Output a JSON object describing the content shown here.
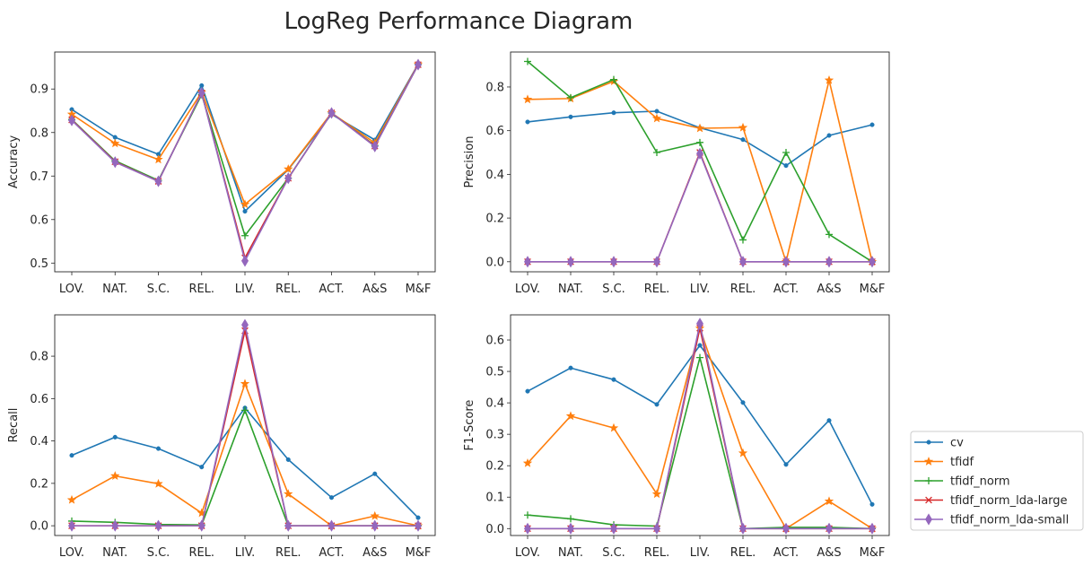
{
  "figure": {
    "title": "LogReg Performance Diagram"
  },
  "chart_data": [
    {
      "type": "line",
      "ylabel": "Accuracy",
      "categories": [
        "LOV.",
        "NAT.",
        "S.C.",
        "REL.",
        "LIV.",
        "REL.",
        "ACT.",
        "A&S",
        "M&F"
      ],
      "ylim": [
        0.48,
        0.985
      ],
      "yticks": [
        0.5,
        0.6,
        0.7,
        0.8,
        0.9
      ],
      "series": [
        {
          "name": "cv",
          "values": [
            0.853,
            0.789,
            0.75,
            0.908,
            0.619,
            0.715,
            0.842,
            0.783,
            0.957
          ]
        },
        {
          "name": "tfidf",
          "values": [
            0.842,
            0.775,
            0.738,
            0.893,
            0.635,
            0.716,
            0.845,
            0.776,
            0.957
          ]
        },
        {
          "name": "tfidf_norm",
          "values": [
            0.83,
            0.735,
            0.69,
            0.887,
            0.563,
            0.695,
            0.845,
            0.77,
            0.956
          ]
        },
        {
          "name": "tfidf_norm_lda-large",
          "values": [
            0.829,
            0.733,
            0.688,
            0.891,
            0.512,
            0.695,
            0.845,
            0.769,
            0.956
          ]
        },
        {
          "name": "tfidf_norm_lda-small",
          "values": [
            0.828,
            0.732,
            0.688,
            0.891,
            0.505,
            0.695,
            0.845,
            0.768,
            0.956
          ]
        }
      ]
    },
    {
      "type": "line",
      "ylabel": "Precision",
      "categories": [
        "LOV.",
        "NAT.",
        "S.C.",
        "REL.",
        "LIV.",
        "REL.",
        "ACT.",
        "A&S",
        "M&F"
      ],
      "ylim": [
        -0.046,
        0.96
      ],
      "yticks": [
        0.0,
        0.2,
        0.4,
        0.6,
        0.8
      ],
      "series": [
        {
          "name": "cv",
          "values": [
            0.64,
            0.663,
            0.682,
            0.689,
            0.613,
            0.559,
            0.44,
            0.578,
            0.627
          ]
        },
        {
          "name": "tfidf",
          "values": [
            0.743,
            0.747,
            0.826,
            0.656,
            0.611,
            0.614,
            0.0,
            0.831,
            0.0
          ]
        },
        {
          "name": "tfidf_norm",
          "values": [
            0.917,
            0.751,
            0.834,
            0.5,
            0.546,
            0.1,
            0.5,
            0.125,
            0.0
          ]
        },
        {
          "name": "tfidf_norm_lda-large",
          "values": [
            0.0,
            0.0,
            0.0,
            0.0,
            0.5,
            0.0,
            0.0,
            0.0,
            0.0
          ]
        },
        {
          "name": "tfidf_norm_lda-small",
          "values": [
            0.0,
            0.0,
            0.0,
            0.0,
            0.495,
            0.0,
            0.0,
            0.0,
            0.0
          ]
        }
      ]
    },
    {
      "type": "line",
      "ylabel": "Recall",
      "categories": [
        "LOV.",
        "NAT.",
        "S.C.",
        "REL.",
        "LIV.",
        "REL.",
        "ACT.",
        "A&S",
        "M&F"
      ],
      "ylim": [
        -0.046,
        0.995
      ],
      "yticks": [
        0.0,
        0.2,
        0.4,
        0.6,
        0.8
      ],
      "series": [
        {
          "name": "cv",
          "values": [
            0.332,
            0.418,
            0.364,
            0.277,
            0.556,
            0.312,
            0.133,
            0.245,
            0.038
          ]
        },
        {
          "name": "tfidf",
          "values": [
            0.122,
            0.235,
            0.198,
            0.06,
            0.67,
            0.15,
            0.0,
            0.046,
            0.0
          ]
        },
        {
          "name": "tfidf_norm",
          "values": [
            0.022,
            0.016,
            0.006,
            0.004,
            0.545,
            0.0,
            0.0,
            0.0,
            0.0
          ]
        },
        {
          "name": "tfidf_norm_lda-large",
          "values": [
            0.0,
            0.0,
            0.0,
            0.0,
            0.92,
            0.0,
            0.0,
            0.0,
            0.0
          ]
        },
        {
          "name": "tfidf_norm_lda-small",
          "values": [
            0.0,
            0.0,
            0.0,
            0.0,
            0.948,
            0.0,
            0.0,
            0.0,
            0.0
          ]
        }
      ]
    },
    {
      "type": "line",
      "ylabel": "F1-Score",
      "categories": [
        "LOV.",
        "NAT.",
        "S.C.",
        "REL.",
        "LIV.",
        "REL.",
        "ACT.",
        "A&S",
        "M&F"
      ],
      "ylim": [
        -0.022,
        0.68
      ],
      "yticks": [
        0.0,
        0.1,
        0.2,
        0.3,
        0.4,
        0.5,
        0.6
      ],
      "series": [
        {
          "name": "cv",
          "values": [
            0.437,
            0.511,
            0.474,
            0.395,
            0.583,
            0.401,
            0.204,
            0.344,
            0.077
          ]
        },
        {
          "name": "tfidf",
          "values": [
            0.208,
            0.358,
            0.32,
            0.11,
            0.637,
            0.24,
            0.0,
            0.087,
            0.0
          ]
        },
        {
          "name": "tfidf_norm",
          "values": [
            0.043,
            0.031,
            0.012,
            0.008,
            0.544,
            0.0,
            0.004,
            0.004,
            0.0
          ]
        },
        {
          "name": "tfidf_norm_lda-large",
          "values": [
            0.0,
            0.0,
            0.0,
            0.0,
            0.638,
            0.0,
            0.0,
            0.0,
            0.0
          ]
        },
        {
          "name": "tfidf_norm_lda-small",
          "values": [
            0.0,
            0.0,
            0.0,
            0.0,
            0.652,
            0.0,
            0.0,
            0.0,
            0.0
          ]
        }
      ]
    }
  ],
  "legend": {
    "placement": "lower-right outside",
    "entries": [
      {
        "name": "cv",
        "color": "#1f77b4",
        "marker": "point"
      },
      {
        "name": "tfidf",
        "color": "#ff7f0e",
        "marker": "star"
      },
      {
        "name": "tfidf_norm",
        "color": "#2ca02c",
        "marker": "plus"
      },
      {
        "name": "tfidf_norm_lda-large",
        "color": "#d62728",
        "marker": "x"
      },
      {
        "name": "tfidf_norm_lda-small",
        "color": "#9467bd",
        "marker": "thin-diamond"
      }
    ]
  }
}
